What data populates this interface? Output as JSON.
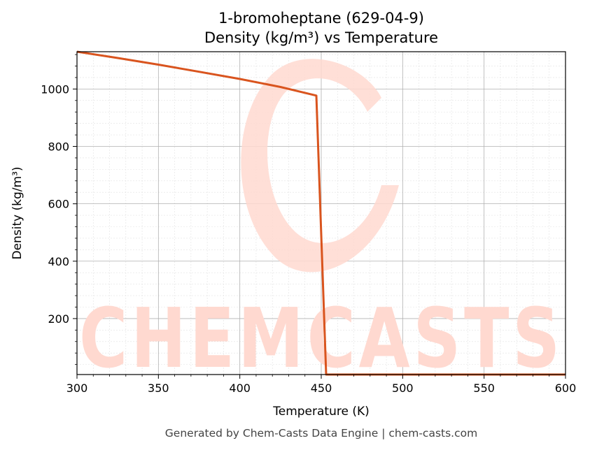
{
  "chart_data": {
    "type": "line",
    "title": "1-bromoheptane (629-04-9)",
    "subtitle": "Density (kg/m³) vs Temperature",
    "xlabel": "Temperature (K)",
    "ylabel": "Density (kg/m³)",
    "xlim": [
      300,
      600
    ],
    "ylim": [
      5,
      1130
    ],
    "xticks": [
      300,
      350,
      400,
      450,
      500,
      550,
      600
    ],
    "yticks": [
      200,
      400,
      600,
      800,
      1000
    ],
    "grid": true,
    "series": [
      {
        "color": "#d9541e",
        "x": [
          300,
          325,
          350,
          375,
          400,
          425,
          447,
          453,
          600
        ],
        "y": [
          1130,
          1108,
          1085,
          1060,
          1035,
          1007,
          977,
          5,
          5
        ]
      }
    ]
  },
  "watermark": {
    "text": "CHEMCASTS",
    "color": "#ffd9d0"
  },
  "footer": "Generated by Chem-Casts Data Engine | chem-casts.com"
}
